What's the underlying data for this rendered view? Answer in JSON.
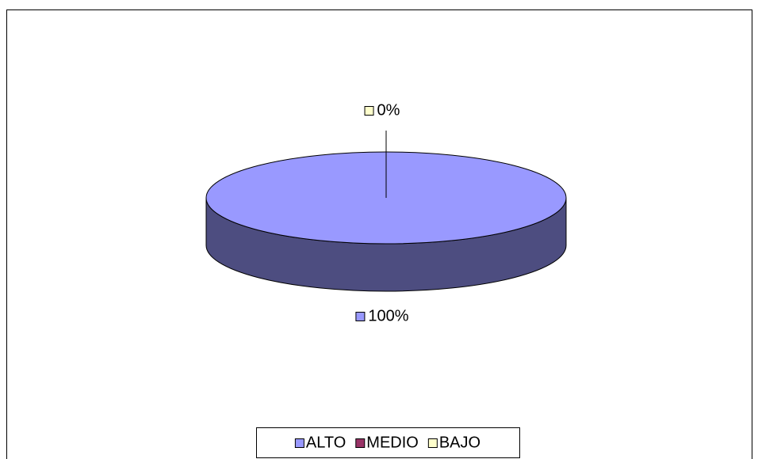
{
  "chart_data": {
    "type": "pie",
    "categories": [
      "ALTO",
      "MEDIO",
      "BAJO"
    ],
    "values": [
      100,
      0,
      0
    ],
    "value_labels": [
      "100%",
      null,
      "0%"
    ],
    "colors": [
      "#9999ff",
      "#993366",
      "#ffffcc"
    ],
    "legend": "bottom"
  }
}
